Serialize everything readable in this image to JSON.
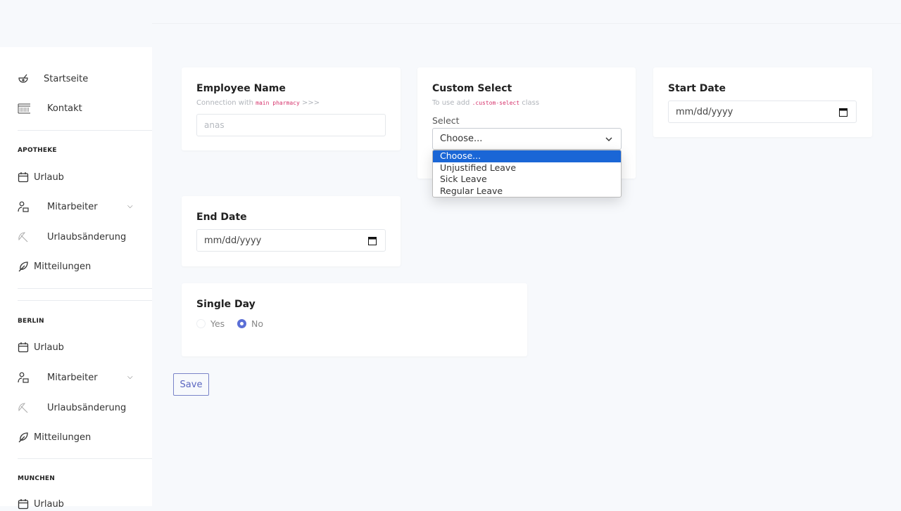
{
  "sidebar": {
    "top": [
      {
        "label": "Startseite",
        "icon": "mortar-pestle-icon"
      },
      {
        "label": "Kontakt",
        "icon": "keyboard-icon"
      }
    ],
    "sections": [
      {
        "title": "APOTHEKE",
        "items": [
          {
            "label": "Urlaub",
            "icon": "calendar-icon"
          },
          {
            "label": "Mitarbeiter",
            "icon": "user-icon",
            "expandable": true
          },
          {
            "label": "Urlaubsänderung",
            "icon": "umbrella-icon"
          },
          {
            "label": "Mitteilungen",
            "icon": "feather-icon"
          }
        ]
      },
      {
        "title": "BERLIN",
        "items": [
          {
            "label": "Urlaub",
            "icon": "calendar-icon"
          },
          {
            "label": "Mitarbeiter",
            "icon": "user-icon",
            "expandable": true
          },
          {
            "label": "Urlaubsänderung",
            "icon": "umbrella-icon"
          },
          {
            "label": "Mitteilungen",
            "icon": "feather-icon"
          }
        ]
      },
      {
        "title": "MUNCHEN",
        "items": [
          {
            "label": "Urlaub",
            "icon": "calendar-icon"
          }
        ]
      }
    ]
  },
  "form": {
    "employee": {
      "title": "Employee Name",
      "sub_prefix": "Connection with",
      "sub_code": "main pharmacy",
      "sub_suffix": ">>>",
      "placeholder": "anas"
    },
    "custom_select": {
      "title": "Custom Select",
      "sub_prefix": "To use add",
      "sub_code": ".custom-select",
      "sub_suffix": "class",
      "label": "Select",
      "value": "Choose...",
      "options": [
        "Choose...",
        "Unjustified Leave",
        "Sick Leave",
        "Regular Leave"
      ],
      "highlight_color": "#1a66d6"
    },
    "start_date": {
      "title": "Start Date",
      "placeholder": "mm/dd/yyyy"
    },
    "end_date": {
      "title": "End Date",
      "placeholder": "mm/dd/yyyy"
    },
    "single_day": {
      "title": "Single Day",
      "options": [
        "Yes",
        "No"
      ],
      "selected": "No",
      "accent": "#5b6fd6"
    },
    "save_label": "Save"
  }
}
